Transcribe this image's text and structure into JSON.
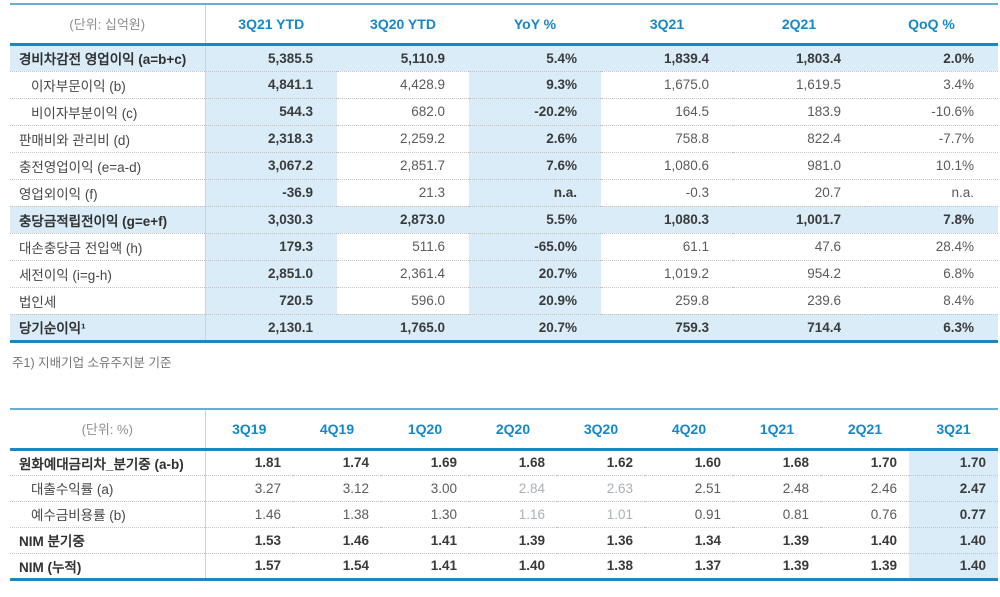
{
  "colors": {
    "accent_blue": "#1487c9",
    "border_blue_thick": "#1d86c4",
    "border_blue_thin": "#66afd3",
    "shade_light_blue": "#d9ecf8",
    "text_dark": "#3a3a3a",
    "text_gray": "#5b5b5b",
    "text_faint": "#aab0b6"
  },
  "table1": {
    "unit_label": "(단위: 십억원)",
    "columns": [
      "3Q21 YTD",
      "3Q20 YTD",
      "YoY %",
      "3Q21",
      "2Q21",
      "QoQ %"
    ],
    "shaded_column_indexes": [
      0,
      2
    ],
    "emphasis_row_shading": true,
    "rows": [
      {
        "label": "경비차감전 영업이익 (a=b+c)",
        "emphasis": true,
        "indent": false,
        "values": [
          "5,385.5",
          "5,110.9",
          "5.4%",
          "1,839.4",
          "1,803.4",
          "2.0%"
        ]
      },
      {
        "label": "이자부문이익 (b)",
        "emphasis": false,
        "indent": true,
        "values": [
          "4,841.1",
          "4,428.9",
          "9.3%",
          "1,675.0",
          "1,619.5",
          "3.4%"
        ]
      },
      {
        "label": "비이자부분이익 (c)",
        "emphasis": false,
        "indent": true,
        "values": [
          "544.3",
          "682.0",
          "-20.2%",
          "164.5",
          "183.9",
          "-10.6%"
        ]
      },
      {
        "label": "판매비와 관리비 (d)",
        "emphasis": false,
        "indent": false,
        "values": [
          "2,318.3",
          "2,259.2",
          "2.6%",
          "758.8",
          "822.4",
          "-7.7%"
        ]
      },
      {
        "label": "충전영업이익 (e=a-d)",
        "emphasis": false,
        "indent": false,
        "values": [
          "3,067.2",
          "2,851.7",
          "7.6%",
          "1,080.6",
          "981.0",
          "10.1%"
        ]
      },
      {
        "label": "영업외이익 (f)",
        "emphasis": false,
        "indent": false,
        "values": [
          "-36.9",
          "21.3",
          "n.a.",
          "-0.3",
          "20.7",
          "n.a."
        ]
      },
      {
        "label": "충당금적립전이익 (g=e+f)",
        "emphasis": true,
        "indent": false,
        "values": [
          "3,030.3",
          "2,873.0",
          "5.5%",
          "1,080.3",
          "1,001.7",
          "7.8%"
        ]
      },
      {
        "label": "대손충당금 전입액 (h)",
        "emphasis": false,
        "indent": false,
        "values": [
          "179.3",
          "511.6",
          "-65.0%",
          "61.1",
          "47.6",
          "28.4%"
        ]
      },
      {
        "label": "세전이익 (i=g-h)",
        "emphasis": false,
        "indent": false,
        "values": [
          "2,851.0",
          "2,361.4",
          "20.7%",
          "1,019.2",
          "954.2",
          "6.8%"
        ]
      },
      {
        "label": "법인세",
        "emphasis": false,
        "indent": false,
        "values": [
          "720.5",
          "596.0",
          "20.9%",
          "259.8",
          "239.6",
          "8.4%"
        ]
      },
      {
        "label": "당기순이익¹",
        "emphasis": true,
        "indent": false,
        "values": [
          "2,130.1",
          "1,765.0",
          "20.7%",
          "759.3",
          "714.4",
          "6.3%"
        ]
      }
    ],
    "footnote": "주1) 지배기업 소유주지분 기준"
  },
  "table2": {
    "unit_label": "(단위: %)",
    "columns": [
      "3Q19",
      "4Q19",
      "1Q20",
      "2Q20",
      "3Q20",
      "4Q20",
      "1Q21",
      "2Q21",
      "3Q21"
    ],
    "shaded_column_indexes": [
      8
    ],
    "emphasis_row_shading": false,
    "rows": [
      {
        "label": "원화예대금리차_분기중 (a-b)",
        "emphasis": true,
        "indent": false,
        "values": [
          "1.81",
          "1.74",
          "1.69",
          "1.68",
          "1.62",
          "1.60",
          "1.68",
          "1.70",
          "1.70"
        ]
      },
      {
        "label": "대출수익률 (a)",
        "emphasis": false,
        "indent": true,
        "faint_cols": [
          3,
          4
        ],
        "values": [
          "3.27",
          "3.12",
          "3.00",
          "2.84",
          "2.63",
          "2.51",
          "2.48",
          "2.46",
          "2.47"
        ]
      },
      {
        "label": "예수금비용률 (b)",
        "emphasis": false,
        "indent": true,
        "faint_cols": [
          3,
          4
        ],
        "values": [
          "1.46",
          "1.38",
          "1.30",
          "1.16",
          "1.01",
          "0.91",
          "0.81",
          "0.76",
          "0.77"
        ]
      },
      {
        "label": "NIM 분기중",
        "emphasis": true,
        "indent": false,
        "values": [
          "1.53",
          "1.46",
          "1.41",
          "1.39",
          "1.36",
          "1.34",
          "1.39",
          "1.40",
          "1.40"
        ]
      },
      {
        "label": "NIM (누적)",
        "emphasis": true,
        "indent": false,
        "values": [
          "1.57",
          "1.54",
          "1.41",
          "1.40",
          "1.38",
          "1.37",
          "1.39",
          "1.39",
          "1.40"
        ]
      }
    ]
  }
}
